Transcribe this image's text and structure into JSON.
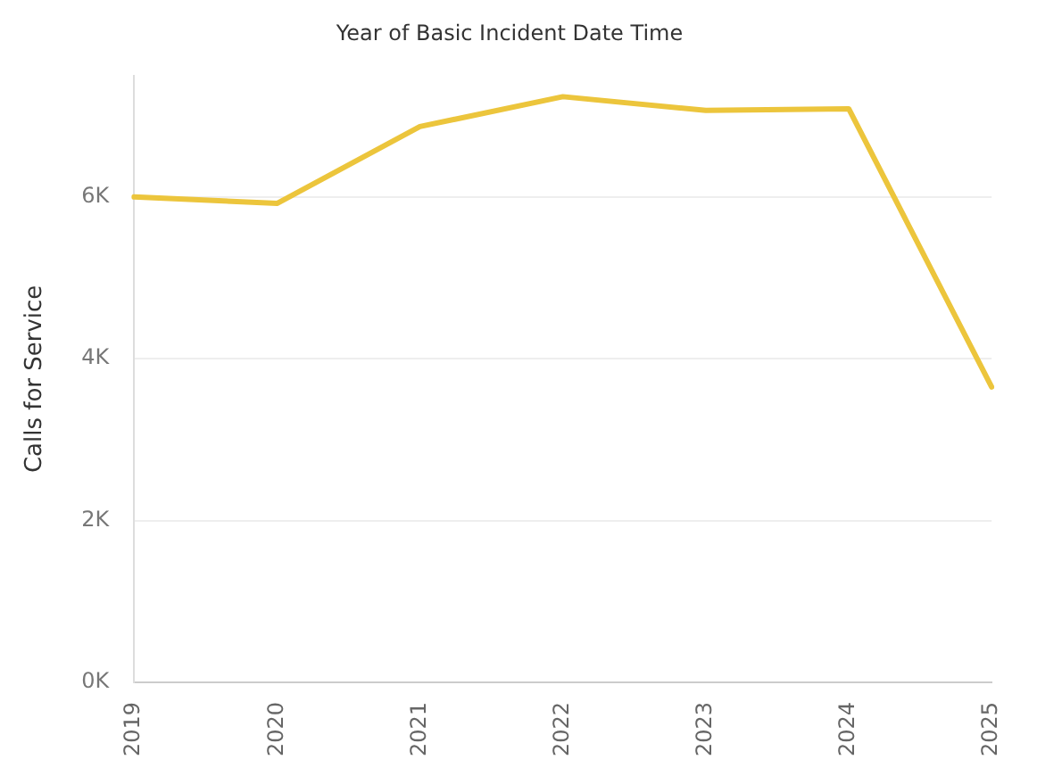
{
  "chart_data": {
    "type": "line",
    "title": "Year of Basic Incident Date Time",
    "ylabel": "Calls for Service",
    "categories": [
      "2019",
      "2020",
      "2021",
      "2022",
      "2023",
      "2024",
      "2025"
    ],
    "series": [
      {
        "color": "#ecc53c",
        "values": [
          6000,
          5920,
          6870,
          7240,
          7070,
          7090,
          3650
        ]
      }
    ],
    "ylim": [
      0,
      7500
    ],
    "yticks": [
      {
        "value": 0,
        "label": "0K"
      },
      {
        "value": 2000,
        "label": "2K"
      },
      {
        "value": 4000,
        "label": "4K"
      },
      {
        "value": 6000,
        "label": "6K"
      }
    ],
    "grid": "y",
    "marker": "none",
    "line_style": "solid",
    "legend": false
  }
}
